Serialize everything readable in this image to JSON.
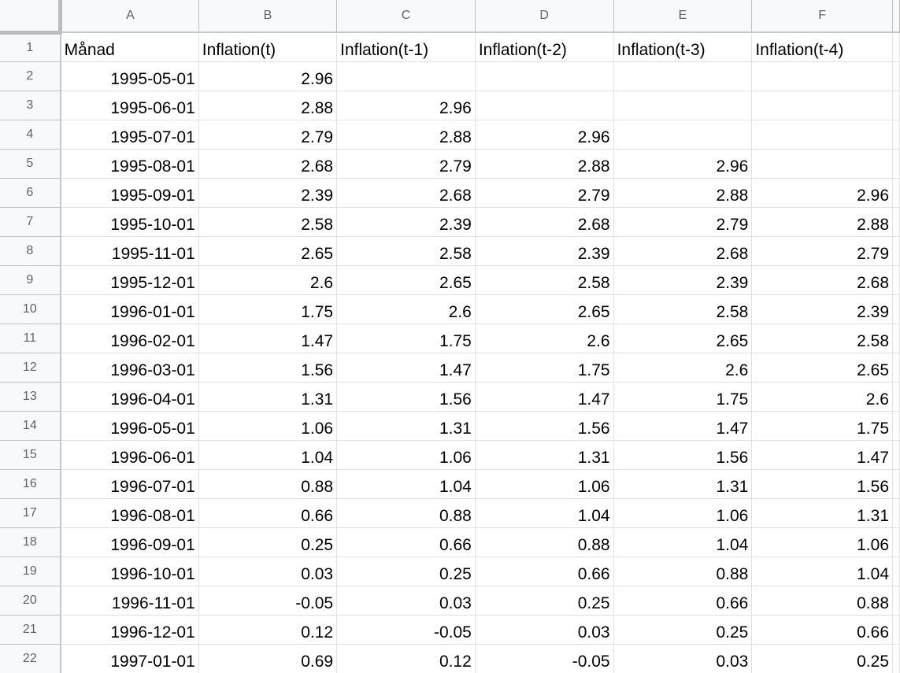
{
  "columns": [
    "A",
    "B",
    "C",
    "D",
    "E",
    "F"
  ],
  "rows": [
    {
      "n": "1",
      "cells": [
        "Månad",
        "Inflation(t)",
        "Inflation(t-1)",
        "Inflation(t-2)",
        "Inflation(t-3)",
        "Inflation(t-4)"
      ]
    },
    {
      "n": "2",
      "cells": [
        "1995-05-01",
        "2.96",
        "",
        "",
        "",
        ""
      ]
    },
    {
      "n": "3",
      "cells": [
        "1995-06-01",
        "2.88",
        "2.96",
        "",
        "",
        ""
      ]
    },
    {
      "n": "4",
      "cells": [
        "1995-07-01",
        "2.79",
        "2.88",
        "2.96",
        "",
        ""
      ]
    },
    {
      "n": "5",
      "cells": [
        "1995-08-01",
        "2.68",
        "2.79",
        "2.88",
        "2.96",
        ""
      ]
    },
    {
      "n": "6",
      "cells": [
        "1995-09-01",
        "2.39",
        "2.68",
        "2.79",
        "2.88",
        "2.96"
      ]
    },
    {
      "n": "7",
      "cells": [
        "1995-10-01",
        "2.58",
        "2.39",
        "2.68",
        "2.79",
        "2.88"
      ]
    },
    {
      "n": "8",
      "cells": [
        "1995-11-01",
        "2.65",
        "2.58",
        "2.39",
        "2.68",
        "2.79"
      ]
    },
    {
      "n": "9",
      "cells": [
        "1995-12-01",
        "2.6",
        "2.65",
        "2.58",
        "2.39",
        "2.68"
      ]
    },
    {
      "n": "10",
      "cells": [
        "1996-01-01",
        "1.75",
        "2.6",
        "2.65",
        "2.58",
        "2.39"
      ]
    },
    {
      "n": "11",
      "cells": [
        "1996-02-01",
        "1.47",
        "1.75",
        "2.6",
        "2.65",
        "2.58"
      ]
    },
    {
      "n": "12",
      "cells": [
        "1996-03-01",
        "1.56",
        "1.47",
        "1.75",
        "2.6",
        "2.65"
      ]
    },
    {
      "n": "13",
      "cells": [
        "1996-04-01",
        "1.31",
        "1.56",
        "1.47",
        "1.75",
        "2.6"
      ]
    },
    {
      "n": "14",
      "cells": [
        "1996-05-01",
        "1.06",
        "1.31",
        "1.56",
        "1.47",
        "1.75"
      ]
    },
    {
      "n": "15",
      "cells": [
        "1996-06-01",
        "1.04",
        "1.06",
        "1.31",
        "1.56",
        "1.47"
      ]
    },
    {
      "n": "16",
      "cells": [
        "1996-07-01",
        "0.88",
        "1.04",
        "1.06",
        "1.31",
        "1.56"
      ]
    },
    {
      "n": "17",
      "cells": [
        "1996-08-01",
        "0.66",
        "0.88",
        "1.04",
        "1.06",
        "1.31"
      ]
    },
    {
      "n": "18",
      "cells": [
        "1996-09-01",
        "0.25",
        "0.66",
        "0.88",
        "1.04",
        "1.06"
      ]
    },
    {
      "n": "19",
      "cells": [
        "1996-10-01",
        "0.03",
        "0.25",
        "0.66",
        "0.88",
        "1.04"
      ]
    },
    {
      "n": "20",
      "cells": [
        "1996-11-01",
        "-0.05",
        "0.03",
        "0.25",
        "0.66",
        "0.88"
      ]
    },
    {
      "n": "21",
      "cells": [
        "1996-12-01",
        "0.12",
        "-0.05",
        "0.03",
        "0.25",
        "0.66"
      ]
    },
    {
      "n": "22",
      "cells": [
        "1997-01-01",
        "0.69",
        "0.12",
        "-0.05",
        "0.03",
        "0.25"
      ]
    }
  ]
}
